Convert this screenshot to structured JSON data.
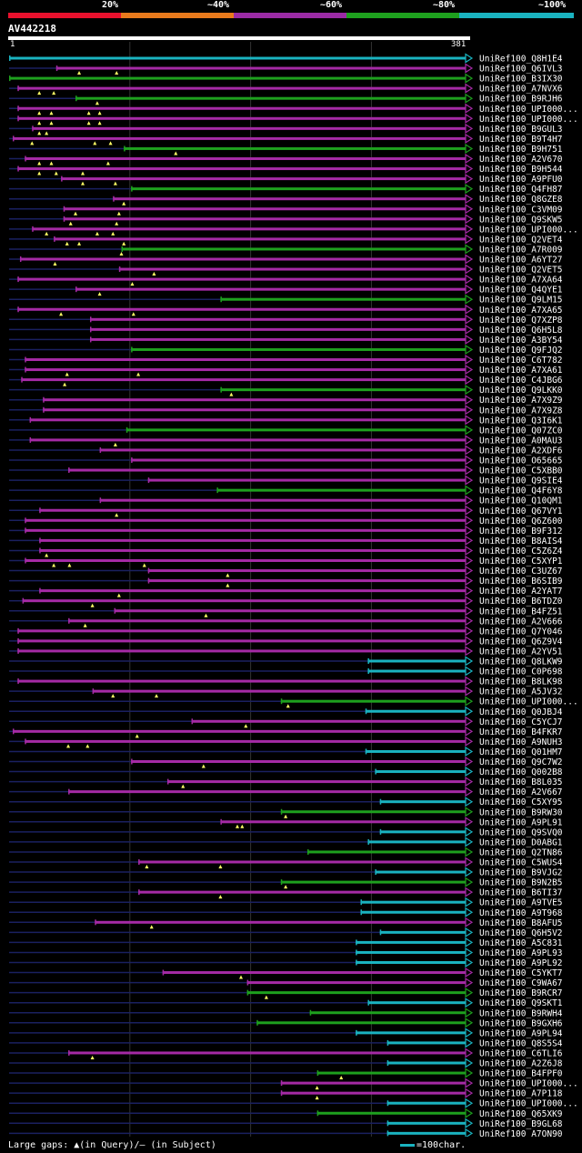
{
  "legend": {
    "colors": [
      "#e8112d",
      "#e87a1c",
      "#9b2ba5",
      "#1ea01e",
      "#1ab3c0"
    ],
    "labels": [
      "20%",
      "~40%",
      "~60%",
      "~80%",
      "~100%"
    ]
  },
  "query": {
    "name": "AV442218",
    "start_label": "1",
    "end_label": "381"
  },
  "colors": {
    "magenta": "#a52aa5",
    "green": "#1ea01e",
    "cyan": "#1ab3c0",
    "navy": "#1a2060",
    "grid": "#333"
  },
  "hits": [
    {
      "label": "UniRef100_Q8H1E4",
      "color": "cyan",
      "start": 0
    },
    {
      "label": "UniRef100_Q6IVL3",
      "color": "magenta",
      "start": 39,
      "marks": [
        58,
        89
      ]
    },
    {
      "label": "UniRef100_B3IX30",
      "color": "green",
      "start": 0
    },
    {
      "label": "UniRef100_A7NVX6",
      "color": "magenta",
      "start": 7,
      "marks": [
        25,
        37
      ]
    },
    {
      "label": "UniRef100_B9RJH6",
      "color": "green",
      "start": 55,
      "marks": [
        73
      ]
    },
    {
      "label": "UniRef100_UPI000...",
      "color": "magenta",
      "start": 7,
      "marks": [
        25,
        35,
        66,
        75
      ]
    },
    {
      "label": "UniRef100_UPI000...",
      "color": "magenta",
      "start": 7,
      "marks": [
        25,
        35,
        66,
        75
      ]
    },
    {
      "label": "UniRef100_B9GUL3",
      "color": "magenta",
      "start": 19,
      "marks": [
        25,
        31
      ]
    },
    {
      "label": "UniRef100_B9T4H7",
      "color": "magenta",
      "start": 3,
      "marks": [
        19,
        71,
        84
      ]
    },
    {
      "label": "UniRef100_B9H751",
      "color": "green",
      "start": 95,
      "marks": [
        138
      ]
    },
    {
      "label": "UniRef100_A2V670",
      "color": "magenta",
      "start": 13,
      "marks": [
        25,
        35,
        82
      ]
    },
    {
      "label": "UniRef100_B9H544",
      "color": "magenta",
      "start": 7,
      "marks": [
        25,
        39,
        61
      ]
    },
    {
      "label": "UniRef100_A9PFU0",
      "color": "magenta",
      "start": 43,
      "marks": [
        61,
        88
      ]
    },
    {
      "label": "UniRef100_Q4FH87",
      "color": "green",
      "start": 101
    },
    {
      "label": "UniRef100_Q8GZE8",
      "color": "magenta",
      "start": 86,
      "marks": [
        95
      ]
    },
    {
      "label": "UniRef100_C3VM09",
      "color": "magenta",
      "start": 45,
      "marks": [
        55,
        91
      ]
    },
    {
      "label": "UniRef100_Q9SKW5",
      "color": "magenta",
      "start": 45,
      "marks": [
        51,
        89
      ]
    },
    {
      "label": "UniRef100_UPI000...",
      "color": "magenta",
      "start": 19,
      "marks": [
        31,
        73,
        86
      ]
    },
    {
      "label": "UniRef100_Q2VET4",
      "color": "magenta",
      "start": 37,
      "marks": [
        48,
        58,
        95
      ]
    },
    {
      "label": "UniRef100_A7R009",
      "color": "green",
      "start": 93,
      "marks": [
        93
      ]
    },
    {
      "label": "UniRef100_A6YT27",
      "color": "magenta",
      "start": 9,
      "marks": [
        38
      ]
    },
    {
      "label": "UniRef100_Q2VET5",
      "color": "magenta",
      "start": 91,
      "marks": [
        120
      ]
    },
    {
      "label": "UniRef100_A7XA64",
      "color": "magenta",
      "start": 7,
      "marks": [
        102
      ]
    },
    {
      "label": "UniRef100_Q4QYE1",
      "color": "magenta",
      "start": 55,
      "marks": [
        75
      ]
    },
    {
      "label": "UniRef100_Q9LM15",
      "color": "green",
      "start": 175
    },
    {
      "label": "UniRef100_A7XA65",
      "color": "magenta",
      "start": 7,
      "marks": [
        43,
        103
      ]
    },
    {
      "label": "UniRef100_Q7XZP8",
      "color": "magenta",
      "start": 67
    },
    {
      "label": "UniRef100_Q6H5L8",
      "color": "magenta",
      "start": 67
    },
    {
      "label": "UniRef100_A3BY54",
      "color": "magenta",
      "start": 67
    },
    {
      "label": "UniRef100_Q9FJQ2",
      "color": "green",
      "start": 101
    },
    {
      "label": "UniRef100_C6T782",
      "color": "magenta",
      "start": 13
    },
    {
      "label": "UniRef100_A7XA61",
      "color": "magenta",
      "start": 13,
      "marks": [
        48,
        107
      ]
    },
    {
      "label": "UniRef100_C4JBG6",
      "color": "magenta",
      "start": 10,
      "marks": [
        46
      ]
    },
    {
      "label": "UniRef100_Q9LKK0",
      "color": "green",
      "start": 175,
      "marks": [
        184
      ]
    },
    {
      "label": "UniRef100_A7X9Z9",
      "color": "magenta",
      "start": 28
    },
    {
      "label": "UniRef100_A7X9Z8",
      "color": "magenta",
      "start": 28
    },
    {
      "label": "UniRef100_Q3I6K1",
      "color": "magenta",
      "start": 17
    },
    {
      "label": "UniRef100_Q07ZC0",
      "color": "green",
      "start": 97
    },
    {
      "label": "UniRef100_A0MAU3",
      "color": "magenta",
      "start": 17,
      "marks": [
        88
      ]
    },
    {
      "label": "UniRef100_A2XDF6",
      "color": "magenta",
      "start": 75
    },
    {
      "label": "UniRef100_O65665",
      "color": "magenta",
      "start": 101
    },
    {
      "label": "UniRef100_C5XBB0",
      "color": "magenta",
      "start": 49
    },
    {
      "label": "UniRef100_Q9SIE4",
      "color": "magenta",
      "start": 115
    },
    {
      "label": "UniRef100_Q4F6Y8",
      "color": "green",
      "start": 172
    },
    {
      "label": "UniRef100_Q10QM1",
      "color": "magenta",
      "start": 75
    },
    {
      "label": "UniRef100_Q67VY1",
      "color": "magenta",
      "start": 25,
      "marks": [
        89
      ]
    },
    {
      "label": "UniRef100_Q6Z600",
      "color": "magenta",
      "start": 13
    },
    {
      "label": "UniRef100_B9F312",
      "color": "magenta",
      "start": 13
    },
    {
      "label": "UniRef100_B8AIS4",
      "color": "magenta",
      "start": 25
    },
    {
      "label": "UniRef100_C5Z6Z4",
      "color": "magenta",
      "start": 25,
      "marks": [
        31
      ]
    },
    {
      "label": "UniRef100_C5XYP1",
      "color": "magenta",
      "start": 13,
      "marks": [
        37,
        50,
        112
      ]
    },
    {
      "label": "UniRef100_C3UZ67",
      "color": "magenta",
      "start": 115,
      "marks": [
        181
      ]
    },
    {
      "label": "UniRef100_B6SIB9",
      "color": "magenta",
      "start": 115,
      "marks": [
        181
      ]
    },
    {
      "label": "UniRef100_A2YAT7",
      "color": "magenta",
      "start": 25,
      "marks": [
        91
      ]
    },
    {
      "label": "UniRef100_B6TDZ0",
      "color": "magenta",
      "start": 11,
      "marks": [
        69
      ]
    },
    {
      "label": "UniRef100_B4FZ51",
      "color": "magenta",
      "start": 87,
      "marks": [
        163
      ]
    },
    {
      "label": "UniRef100_A2V666",
      "color": "magenta",
      "start": 49,
      "marks": [
        63
      ]
    },
    {
      "label": "UniRef100_Q7Y046",
      "color": "magenta",
      "start": 7
    },
    {
      "label": "UniRef100_Q6Z9V4",
      "color": "magenta",
      "start": 7
    },
    {
      "label": "UniRef100_A2YV51",
      "color": "magenta",
      "start": 7
    },
    {
      "label": "UniRef100_Q8LKW9",
      "color": "cyan",
      "start": 297
    },
    {
      "label": "UniRef100_C0P698",
      "color": "cyan",
      "start": 297
    },
    {
      "label": "UniRef100_B8LK98",
      "color": "magenta",
      "start": 7
    },
    {
      "label": "UniRef100_A5JV32",
      "color": "magenta",
      "start": 69,
      "marks": [
        86,
        122
      ]
    },
    {
      "label": "UniRef100_UPI000...",
      "color": "green",
      "start": 225,
      "marks": [
        231
      ]
    },
    {
      "label": "UniRef100_Q0JBJ4",
      "color": "cyan",
      "start": 295
    },
    {
      "label": "UniRef100_C5YCJ7",
      "color": "magenta",
      "start": 151,
      "marks": [
        196
      ]
    },
    {
      "label": "UniRef100_B4FKR7",
      "color": "magenta",
      "start": 3,
      "marks": [
        106
      ]
    },
    {
      "label": "UniRef100_A9NUH3",
      "color": "magenta",
      "start": 13,
      "marks": [
        49,
        65
      ]
    },
    {
      "label": "UniRef100_Q01HM7",
      "color": "cyan",
      "start": 295
    },
    {
      "label": "UniRef100_Q9C7W2",
      "color": "magenta",
      "start": 101,
      "marks": [
        161
      ]
    },
    {
      "label": "UniRef100_Q002B8",
      "color": "cyan",
      "start": 303
    },
    {
      "label": "UniRef100_B8L035",
      "color": "magenta",
      "start": 131,
      "marks": [
        144
      ]
    },
    {
      "label": "UniRef100_A2V667",
      "color": "magenta",
      "start": 49
    },
    {
      "label": "UniRef100_C5XY95",
      "color": "cyan",
      "start": 307
    },
    {
      "label": "UniRef100_B9RW30",
      "color": "green",
      "start": 225,
      "marks": [
        229
      ]
    },
    {
      "label": "UniRef100_A9PL91",
      "color": "magenta",
      "start": 175,
      "marks": [
        189,
        193
      ]
    },
    {
      "label": "UniRef100_Q9SVQ0",
      "color": "cyan",
      "start": 307
    },
    {
      "label": "UniRef100_D0ABG1",
      "color": "cyan",
      "start": 297
    },
    {
      "label": "UniRef100_Q2TN86",
      "color": "green",
      "start": 247
    },
    {
      "label": "UniRef100_C5WUS4",
      "color": "magenta",
      "start": 107,
      "marks": [
        114,
        175
      ]
    },
    {
      "label": "UniRef100_B9VJG2",
      "color": "cyan",
      "start": 303
    },
    {
      "label": "UniRef100_B9N2B5",
      "color": "green",
      "start": 225,
      "marks": [
        229
      ]
    },
    {
      "label": "UniRef100_B6TI37",
      "color": "magenta",
      "start": 107,
      "marks": [
        175
      ]
    },
    {
      "label": "UniRef100_A9TVE5",
      "color": "cyan",
      "start": 291
    },
    {
      "label": "UniRef100_A9T968",
      "color": "cyan",
      "start": 291
    },
    {
      "label": "UniRef100_B8AFU5",
      "color": "magenta",
      "start": 71,
      "marks": [
        118
      ]
    },
    {
      "label": "UniRef100_Q6H5V2",
      "color": "cyan",
      "start": 307
    },
    {
      "label": "UniRef100_A5C831",
      "color": "cyan",
      "start": 287
    },
    {
      "label": "UniRef100_A9PL93",
      "color": "cyan",
      "start": 287
    },
    {
      "label": "UniRef100_A9PL92",
      "color": "cyan",
      "start": 287
    },
    {
      "label": "UniRef100_C5YKT7",
      "color": "magenta",
      "start": 127,
      "marks": [
        192
      ]
    },
    {
      "label": "UniRef100_C9WA67",
      "color": "magenta",
      "start": 197
    },
    {
      "label": "UniRef100_B9RCR7",
      "color": "green",
      "start": 197,
      "marks": [
        213
      ]
    },
    {
      "label": "UniRef100_Q9SKT1",
      "color": "cyan",
      "start": 297
    },
    {
      "label": "UniRef100_B9RWH4",
      "color": "green",
      "start": 249
    },
    {
      "label": "UniRef100_B9GXH6",
      "color": "green",
      "start": 205
    },
    {
      "label": "UniRef100_A9PL94",
      "color": "cyan",
      "start": 287
    },
    {
      "label": "UniRef100_Q8S5S4",
      "color": "cyan",
      "start": 313
    },
    {
      "label": "UniRef100_C6TLI6",
      "color": "magenta",
      "start": 49,
      "marks": [
        69
      ]
    },
    {
      "label": "UniRef100_A2Z6J8",
      "color": "cyan",
      "start": 313
    },
    {
      "label": "UniRef100_B4FPF0",
      "color": "green",
      "start": 255,
      "marks": [
        275
      ]
    },
    {
      "label": "UniRef100_UPI000...",
      "color": "magenta",
      "start": 225,
      "marks": [
        255
      ]
    },
    {
      "label": "UniRef100_A7P118",
      "color": "magenta",
      "start": 225,
      "marks": [
        255
      ]
    },
    {
      "label": "UniRef100_UPI000...",
      "color": "cyan",
      "start": 313
    },
    {
      "label": "UniRef100_Q65XK9",
      "color": "green",
      "start": 255
    },
    {
      "label": "UniRef100_B9GL68",
      "color": "cyan",
      "start": 313
    },
    {
      "label": "UniRef100_A7QN90",
      "color": "cyan",
      "start": 313
    }
  ],
  "footer": {
    "left": "Large gaps: ▲(in Query)/– (in Subject)",
    "right": "=100char."
  }
}
